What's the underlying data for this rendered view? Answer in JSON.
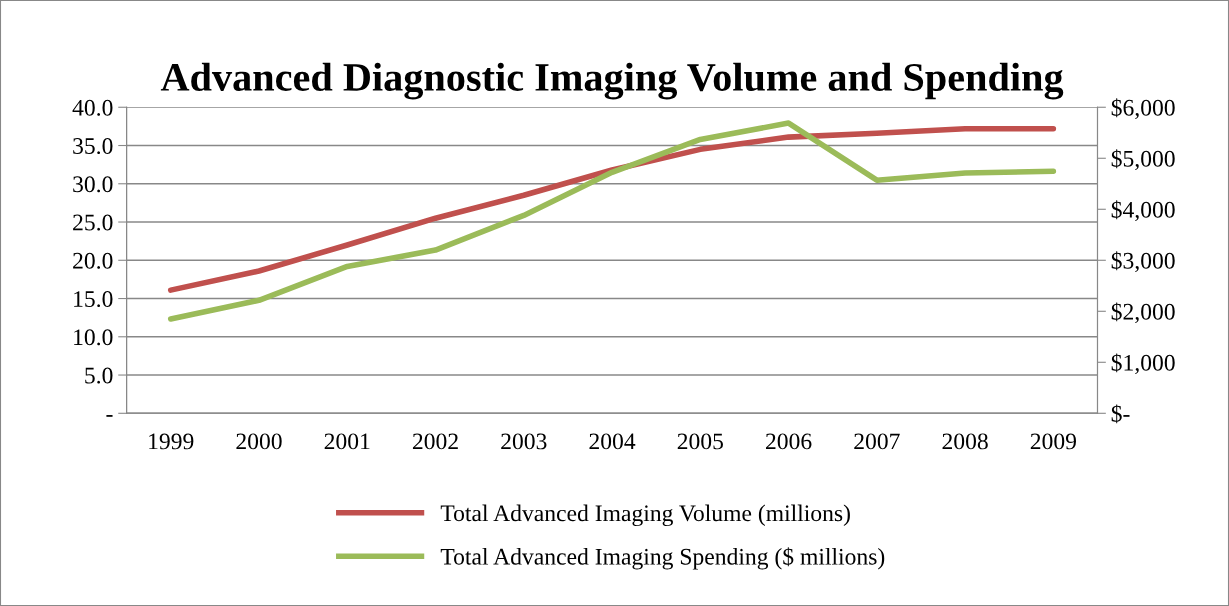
{
  "chart_data": {
    "type": "line",
    "title": "Advanced Diagnostic Imaging Volume and Spending",
    "categories": [
      "1999",
      "2000",
      "2001",
      "2002",
      "2003",
      "2004",
      "2005",
      "2006",
      "2007",
      "2008",
      "2009"
    ],
    "series": [
      {
        "name": "Total Advanced Imaging Volume (millions)",
        "color": "#c0504d",
        "values": [
          16.1,
          18.6,
          22.0,
          25.5,
          28.5,
          31.8,
          34.5,
          36.1,
          36.6,
          37.2,
          37.2
        ]
      },
      {
        "name": "Total Advanced Imaging Spending ($ millions)",
        "color": "#9bbb59",
        "axis": "y2",
        "values": [
          1850,
          2215,
          2880,
          3200,
          3880,
          4725,
          5370,
          5690,
          4570,
          4710,
          4745
        ]
      }
    ],
    "ylim": [
      0,
      40
    ],
    "yticks": [
      {
        "value": 0,
        "label": "-"
      },
      {
        "value": 5,
        "label": "5.0"
      },
      {
        "value": 10,
        "label": "10.0"
      },
      {
        "value": 15,
        "label": "15.0"
      },
      {
        "value": 20,
        "label": "20.0"
      },
      {
        "value": 25,
        "label": "25.0"
      },
      {
        "value": 30,
        "label": "30.0"
      },
      {
        "value": 35,
        "label": "35.0"
      },
      {
        "value": 40,
        "label": "40.0"
      }
    ],
    "y2lim": [
      0,
      6000
    ],
    "y2ticks": [
      {
        "value": 0,
        "label": "$-"
      },
      {
        "value": 1000,
        "label": "$1,000"
      },
      {
        "value": 2000,
        "label": "$2,000"
      },
      {
        "value": 3000,
        "label": "$3,000"
      },
      {
        "value": 4000,
        "label": "$4,000"
      },
      {
        "value": 5000,
        "label": "$5,000"
      },
      {
        "value": 6000,
        "label": "$6,000"
      }
    ],
    "grid": "y",
    "legend": "bottom",
    "marker": "none",
    "line_style": "solid"
  }
}
